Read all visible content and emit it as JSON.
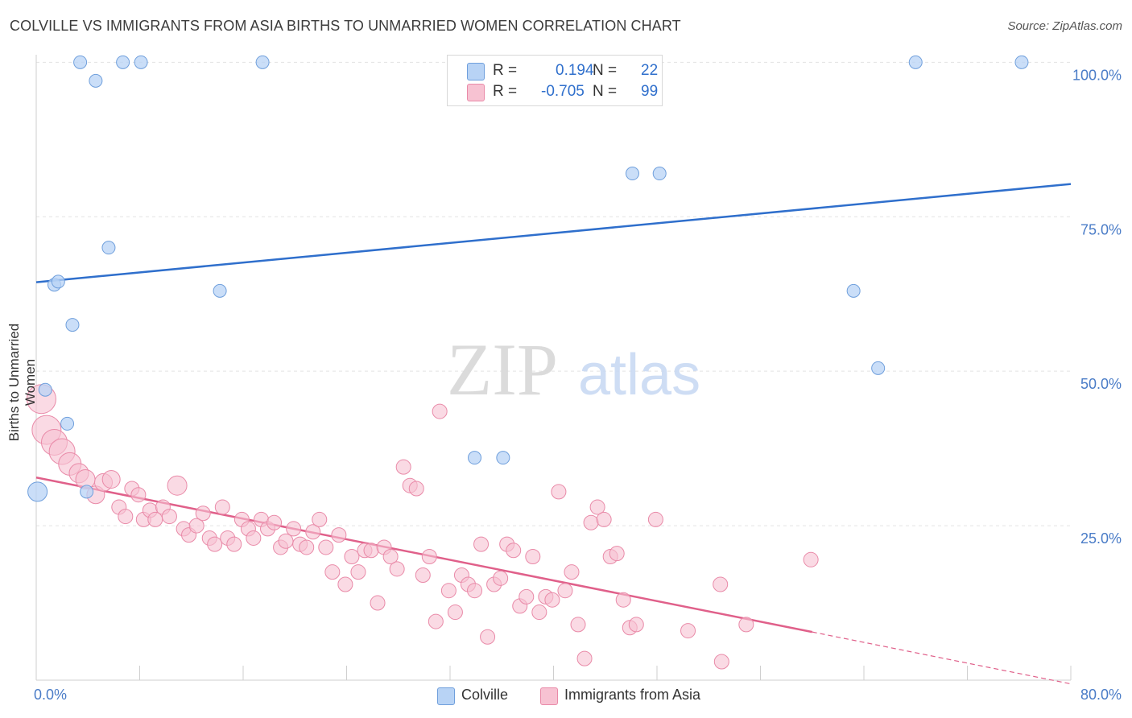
{
  "title": "COLVILLE VS IMMIGRANTS FROM ASIA BIRTHS TO UNMARRIED WOMEN CORRELATION CHART",
  "source": "Source: ZipAtlas.com",
  "watermark": {
    "zip": "ZIP",
    "atlas": "atlas"
  },
  "legend": {
    "rows": [
      {
        "r_label": "R =",
        "r_value": "0.194",
        "n_label": "N =",
        "n_value": "22"
      },
      {
        "r_label": "R =",
        "r_value": "-0.705",
        "n_label": "N =",
        "n_value": "99"
      }
    ]
  },
  "colors": {
    "blue_fill": "#b8d3f5",
    "blue_stroke": "#6f9fdc",
    "blue_line": "#2f6fcc",
    "pink_fill": "#f7c2d2",
    "pink_stroke": "#e98aa8",
    "pink_line": "#e0608a",
    "axis_text": "#4a7cc7",
    "grid": "#e3e3e3"
  },
  "chart_data": {
    "type": "scatter",
    "title": "COLVILLE VS IMMIGRANTS FROM ASIA BIRTHS TO UNMARRIED WOMEN CORRELATION CHART",
    "xlabel": "",
    "ylabel": "Births to Unmarried Women",
    "xlim": [
      0,
      80
    ],
    "ylim": [
      0,
      102
    ],
    "x_tick_labels": [
      "0.0%",
      "80.0%"
    ],
    "y_ticks": [
      25,
      50,
      75,
      100
    ],
    "y_tick_labels": [
      "25.0%",
      "50.0%",
      "75.0%",
      "100.0%"
    ],
    "grid": true,
    "legend_position": "top-center",
    "series": [
      {
        "name": "Colville",
        "color": "#b8d3f5",
        "points": [
          [
            3.4,
            100
          ],
          [
            4.6,
            97
          ],
          [
            6.7,
            100
          ],
          [
            8.1,
            100
          ],
          [
            17.5,
            100
          ],
          [
            68.0,
            100
          ],
          [
            76.2,
            100
          ],
          [
            46.1,
            82
          ],
          [
            48.2,
            82
          ],
          [
            5.6,
            70
          ],
          [
            1.4,
            64
          ],
          [
            1.7,
            64.5
          ],
          [
            14.2,
            63
          ],
          [
            2.8,
            57.5
          ],
          [
            63.2,
            63
          ],
          [
            65.1,
            50.5
          ],
          [
            0.7,
            47
          ],
          [
            2.4,
            41.5
          ],
          [
            33.9,
            36
          ],
          [
            36.1,
            36
          ],
          [
            0.1,
            30.5
          ],
          [
            3.9,
            30.5
          ]
        ],
        "trend": {
          "x": [
            0,
            80
          ],
          "y": [
            64.4,
            80.3
          ]
        }
      },
      {
        "name": "Immigrants from Asia",
        "color": "#f7c2d2",
        "points": [
          [
            0.4,
            45.5
          ],
          [
            0.8,
            40.5
          ],
          [
            1.4,
            38.5
          ],
          [
            2.0,
            37
          ],
          [
            2.6,
            35
          ],
          [
            3.3,
            33.5
          ],
          [
            3.8,
            32.5
          ],
          [
            4.6,
            30
          ],
          [
            5.2,
            32
          ],
          [
            5.8,
            32.5
          ],
          [
            6.4,
            28
          ],
          [
            6.9,
            26.5
          ],
          [
            7.4,
            31
          ],
          [
            7.9,
            30
          ],
          [
            8.3,
            26
          ],
          [
            8.8,
            27.5
          ],
          [
            9.2,
            26
          ],
          [
            9.8,
            28
          ],
          [
            10.3,
            26.5
          ],
          [
            10.9,
            31.5
          ],
          [
            11.4,
            24.5
          ],
          [
            11.8,
            23.5
          ],
          [
            12.4,
            25
          ],
          [
            12.9,
            27
          ],
          [
            13.4,
            23
          ],
          [
            13.8,
            22
          ],
          [
            14.4,
            28
          ],
          [
            14.8,
            23
          ],
          [
            15.3,
            22
          ],
          [
            15.9,
            26
          ],
          [
            16.4,
            24.5
          ],
          [
            16.8,
            23
          ],
          [
            17.4,
            26
          ],
          [
            17.9,
            24.5
          ],
          [
            18.4,
            25.5
          ],
          [
            18.9,
            21.5
          ],
          [
            19.3,
            22.5
          ],
          [
            19.9,
            24.5
          ],
          [
            20.4,
            22
          ],
          [
            20.9,
            21.5
          ],
          [
            21.4,
            24
          ],
          [
            21.9,
            26
          ],
          [
            22.4,
            21.5
          ],
          [
            22.9,
            17.5
          ],
          [
            23.4,
            23.5
          ],
          [
            23.9,
            15.5
          ],
          [
            24.4,
            20
          ],
          [
            24.9,
            17.5
          ],
          [
            25.4,
            21
          ],
          [
            25.9,
            21
          ],
          [
            26.4,
            12.5
          ],
          [
            26.9,
            21.5
          ],
          [
            27.4,
            20
          ],
          [
            27.9,
            18
          ],
          [
            28.4,
            34.5
          ],
          [
            28.9,
            31.5
          ],
          [
            29.4,
            31
          ],
          [
            29.9,
            17
          ],
          [
            30.4,
            20
          ],
          [
            30.9,
            9.5
          ],
          [
            31.2,
            43.5
          ],
          [
            31.9,
            14.5
          ],
          [
            32.4,
            11
          ],
          [
            32.9,
            17
          ],
          [
            33.4,
            15.5
          ],
          [
            33.9,
            14.5
          ],
          [
            34.4,
            22
          ],
          [
            34.9,
            7
          ],
          [
            35.4,
            15.5
          ],
          [
            35.9,
            16.5
          ],
          [
            36.4,
            22
          ],
          [
            36.9,
            21
          ],
          [
            37.4,
            12
          ],
          [
            37.9,
            13.5
          ],
          [
            38.4,
            20
          ],
          [
            38.9,
            11
          ],
          [
            39.4,
            13.5
          ],
          [
            39.9,
            13
          ],
          [
            40.4,
            30.5
          ],
          [
            40.9,
            14.5
          ],
          [
            41.4,
            17.5
          ],
          [
            41.9,
            9
          ],
          [
            42.4,
            3.5
          ],
          [
            42.9,
            25.5
          ],
          [
            43.4,
            28
          ],
          [
            43.9,
            26
          ],
          [
            44.4,
            20
          ],
          [
            44.9,
            20.5
          ],
          [
            45.4,
            13
          ],
          [
            45.9,
            8.5
          ],
          [
            46.4,
            9
          ],
          [
            47.9,
            26
          ],
          [
            50.4,
            8
          ],
          [
            52.9,
            15.5
          ],
          [
            53.0,
            3
          ],
          [
            54.9,
            9
          ],
          [
            59.9,
            19.5
          ]
        ],
        "trend": {
          "x": [
            0,
            60
          ],
          "y": [
            32.8,
            7.8
          ]
        },
        "trend_extension": {
          "x": [
            60,
            80
          ],
          "y": [
            7.8,
            -0.6
          ]
        }
      }
    ]
  },
  "bottom_legend": [
    {
      "label": "Colville"
    },
    {
      "label": "Immigrants from Asia"
    }
  ]
}
